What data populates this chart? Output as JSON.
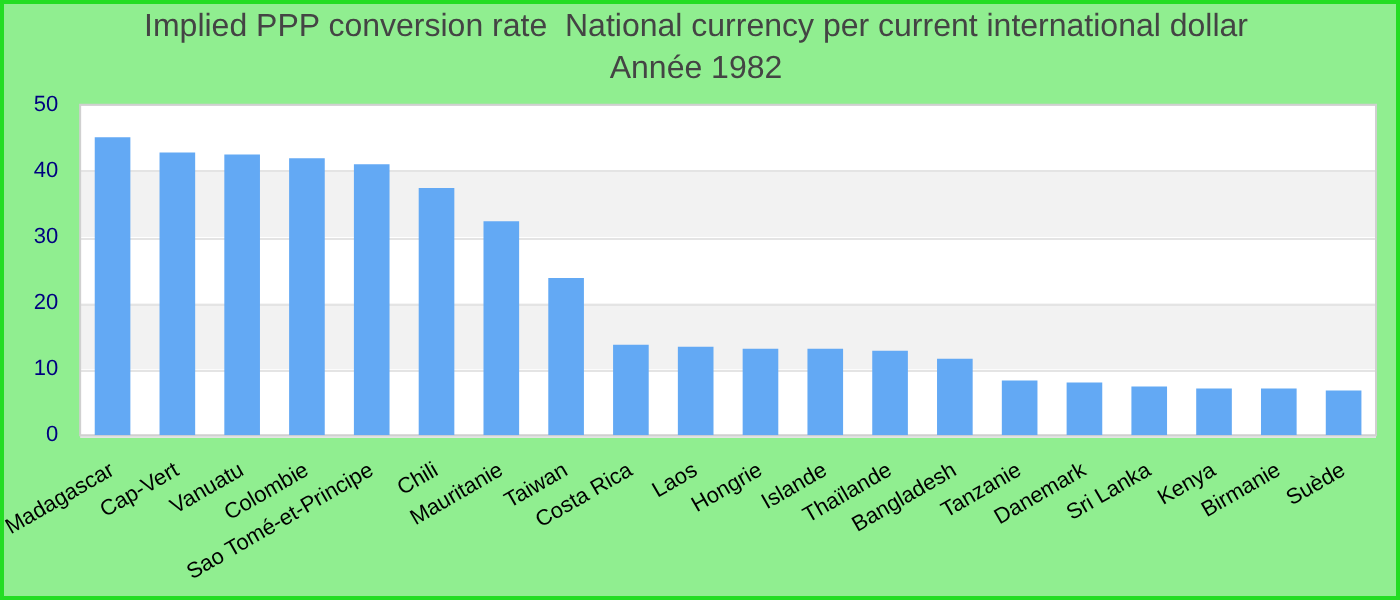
{
  "chart_data": {
    "type": "bar",
    "title": "Implied PPP conversion rate  National currency per current international dollar",
    "subtitle": "Année 1982",
    "categories": [
      "Madagascar",
      "Cap-Vert",
      "Vanuatu",
      "Colombie",
      "Sao Tomé-et-Principe",
      "Chili",
      "Mauritanie",
      "Taiwan",
      "Costa Rica",
      "Laos",
      "Hongrie",
      "Islande",
      "Thaïlande",
      "Bangladesh",
      "Tanzanie",
      "Danemark",
      "Sri Lanka",
      "Kenya",
      "Birmanie",
      "Suède"
    ],
    "values": [
      45.1,
      42.8,
      42.5,
      41.9,
      41.0,
      37.4,
      32.4,
      23.8,
      13.7,
      13.4,
      13.1,
      13.1,
      12.8,
      11.6,
      8.3,
      8.0,
      7.4,
      7.1,
      7.1,
      6.8
    ],
    "color": "#63a9f4",
    "ylim": [
      0,
      50
    ],
    "yticks": [
      0,
      10,
      20,
      30,
      40,
      50
    ],
    "grid": "y",
    "legend": false
  }
}
